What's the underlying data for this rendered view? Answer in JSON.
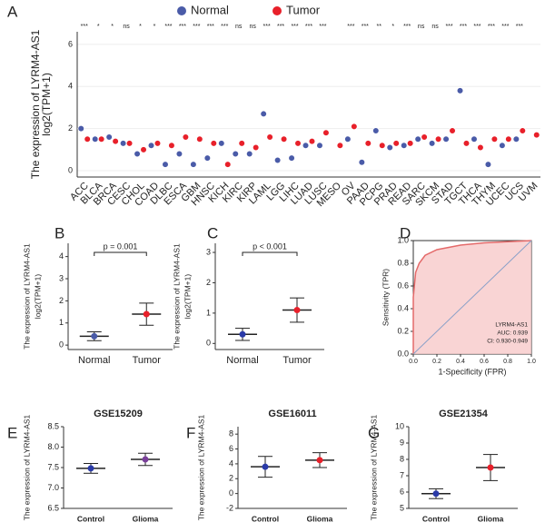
{
  "chart_data": [
    {
      "type": "grouped-dot",
      "panel": "A",
      "ylabel": [
        "The expression of LYRM4-AS1",
        "log2(TPM+1)"
      ],
      "categories": [
        "ACC",
        "BLCA",
        "BRCA",
        "CESC",
        "CHOL",
        "COAD",
        "DLBC",
        "ESCA",
        "GBM",
        "HNSC",
        "KICH",
        "KIRC",
        "KIRP",
        "LAML",
        "LGG",
        "LIHC",
        "LUAD",
        "LUSC",
        "MESO",
        "OV",
        "PAAD",
        "PCPG",
        "PRAD",
        "READ",
        "SARC",
        "SKCM",
        "STAD",
        "TGCT",
        "THCA",
        "THYM",
        "UCEC",
        "UCS",
        "UVM"
      ],
      "significance": [
        "***",
        "*",
        "*",
        "ns",
        "*",
        "*",
        "***",
        "***",
        "***",
        "***",
        "***",
        "ns",
        "ns",
        "***",
        "***",
        "***",
        "***",
        "***",
        null,
        "***",
        "***",
        "**",
        "*",
        "***",
        "ns",
        "ns",
        "***",
        "***",
        "***",
        "***",
        "***",
        "***",
        null
      ],
      "series": [
        {
          "name": "Normal",
          "color": "#4a5ba8",
          "values": [
            2.0,
            1.5,
            1.6,
            1.3,
            0.8,
            1.2,
            0.3,
            0.8,
            0.3,
            0.6,
            1.3,
            0.8,
            0.8,
            2.7,
            0.5,
            0.6,
            1.2,
            1.2,
            null,
            1.5,
            0.4,
            1.9,
            1.1,
            1.2,
            1.5,
            1.3,
            1.5,
            3.8,
            1.5,
            0.3,
            1.2,
            1.5,
            null
          ]
        },
        {
          "name": "Tumor",
          "color": "#e8202a",
          "values": [
            1.5,
            1.5,
            1.4,
            1.3,
            1.0,
            1.3,
            1.2,
            1.6,
            1.5,
            1.3,
            0.3,
            1.3,
            1.1,
            1.6,
            1.5,
            1.3,
            1.4,
            1.8,
            1.2,
            2.1,
            1.3,
            1.2,
            1.3,
            1.3,
            1.6,
            1.5,
            1.9,
            1.3,
            1.1,
            1.5,
            1.5,
            1.9,
            1.7
          ]
        }
      ],
      "ylim": [
        -0.3,
        6.6
      ],
      "yticks": [
        0,
        2,
        4,
        6
      ],
      "grid": true
    },
    {
      "type": "dot",
      "panel": "B",
      "ylabel": [
        "The expression of LYRM4-AS1",
        "log2(TPM+1)"
      ],
      "categories": [
        "Normal",
        "Tumor"
      ],
      "values": [
        0.4,
        1.4
      ],
      "errors": [
        0.2,
        0.5
      ],
      "colors": [
        "#4a5ba8",
        "#e8202a"
      ],
      "annotation": "p = 0.001",
      "ylim": [
        -0.2,
        4.6
      ],
      "yticks": [
        0,
        1,
        2,
        3,
        4
      ]
    },
    {
      "type": "dot",
      "panel": "C",
      "ylabel": [
        "The expression of LYRM4-AS1",
        "log2(TPM+1)"
      ],
      "categories": [
        "Normal",
        "Tumor"
      ],
      "values": [
        0.3,
        1.1
      ],
      "errors": [
        0.2,
        0.4
      ],
      "colors": [
        "#2a3aa8",
        "#e8202a"
      ],
      "annotation": "p < 0.001",
      "ylim": [
        -0.2,
        3.3
      ],
      "yticks": [
        0,
        1,
        2,
        3
      ]
    },
    {
      "type": "line",
      "panel": "D",
      "xlabel": "1-Specificity (FPR)",
      "ylabel": [
        "Sensitivity (TPR)"
      ],
      "x": [
        0,
        0,
        0.02,
        0.05,
        0.1,
        0.2,
        0.4,
        0.6,
        0.8,
        1
      ],
      "series": [
        {
          "color": "#e46a6a",
          "values": [
            0,
            0.5,
            0.72,
            0.8,
            0.87,
            0.92,
            0.96,
            0.98,
            0.99,
            1
          ]
        }
      ],
      "legend": [
        "LYRM4-AS1",
        "AUC: 0.939",
        "CI: 0.930-0.949"
      ],
      "xlim": [
        0,
        1
      ],
      "ylim": [
        0,
        1
      ],
      "xticks": [
        {
          "value": 0,
          "label": "0.0"
        },
        0.2,
        0.4,
        0.6,
        0.8,
        {
          "value": 1,
          "label": "1.0"
        }
      ],
      "yticks": [
        {
          "value": 0,
          "label": "0.0"
        },
        0.2,
        0.4,
        0.6,
        0.8,
        {
          "value": 1,
          "label": "1.0"
        }
      ]
    },
    {
      "type": "dot",
      "panel": "E",
      "title": "GSE15209",
      "ylabel": [
        "The expression of LYRM4-AS1"
      ],
      "categories": [
        "Control",
        "Glioma"
      ],
      "values": [
        7.48,
        7.7
      ],
      "errors": [
        0.12,
        0.15
      ],
      "colors": [
        "#2a3aa8",
        "#7a3f9a"
      ],
      "ylim": [
        6.5,
        8.5
      ],
      "yticks": [
        6.5,
        {
          "value": 7,
          "label": "7.0"
        },
        7.5,
        {
          "value": 8,
          "label": "8.0"
        },
        8.5
      ]
    },
    {
      "type": "dot",
      "panel": "F",
      "title": "GSE16011",
      "ylabel": [
        "The expression of LYRM4-AS1"
      ],
      "categories": [
        "Control",
        "Glioma"
      ],
      "values": [
        3.6,
        4.5
      ],
      "errors": [
        1.4,
        1.0
      ],
      "colors": [
        "#2a3aa8",
        "#e8202a"
      ],
      "ylim": [
        -2,
        9
      ],
      "yticks": [
        -2,
        0,
        2,
        4,
        6,
        8
      ]
    },
    {
      "type": "dot",
      "panel": "G",
      "title": "GSE21354",
      "ylabel": [
        "The expression of LYRM4-AS1"
      ],
      "categories": [
        "Control",
        "Glioma"
      ],
      "values": [
        5.9,
        7.5
      ],
      "errors": [
        0.3,
        0.8
      ],
      "colors": [
        "#2a3aa8",
        "#e8202a"
      ],
      "ylim": [
        5,
        10
      ],
      "yticks": [
        5,
        6,
        7,
        8,
        9,
        10
      ]
    }
  ]
}
